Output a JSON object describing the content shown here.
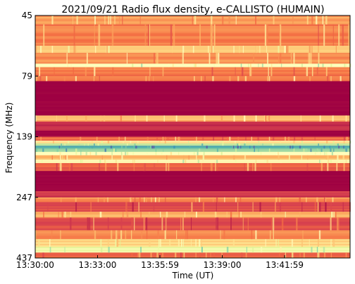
{
  "chart_data": {
    "type": "heatmap",
    "title": "2021/09/21  Radio flux density, e-CALLISTO (HUMAIN)",
    "xlabel": "Time (UT)",
    "ylabel": "Frequency (MHz)",
    "x_ticks": [
      "13:30:00",
      "13:33:00",
      "13:35:59",
      "13:39:00",
      "13:41:59"
    ],
    "y_ticks": [
      "45",
      "79",
      "139",
      "247",
      "437"
    ],
    "y_axis_inverted": true,
    "colormap": "Spectral",
    "colormap_stops": [
      "#9e0142",
      "#d53e4f",
      "#f46d43",
      "#fdae61",
      "#fee08b",
      "#ffffbf",
      "#e6f598",
      "#abdda4",
      "#66c2a5",
      "#3288bd",
      "#5e4fa2"
    ],
    "grid": false,
    "colorbar": false,
    "intensity_bands": [
      {
        "freq_mhz": [
          45,
          50
        ],
        "level": 0.28
      },
      {
        "freq_mhz": [
          50,
          62
        ],
        "level": 0.22
      },
      {
        "freq_mhz": [
          62,
          66
        ],
        "level": 0.34
      },
      {
        "freq_mhz": [
          66,
          72
        ],
        "level": 0.26
      },
      {
        "freq_mhz": [
          72,
          74
        ],
        "level": 0.5
      },
      {
        "freq_mhz": [
          74,
          79
        ],
        "level": 0.22
      },
      {
        "freq_mhz": [
          79,
          84
        ],
        "level": 0.25
      },
      {
        "freq_mhz": [
          84,
          118
        ],
        "level": 0.0
      },
      {
        "freq_mhz": [
          118,
          124
        ],
        "level": 0.32
      },
      {
        "freq_mhz": [
          124,
          133
        ],
        "level": 0.05
      },
      {
        "freq_mhz": [
          133,
          139
        ],
        "level": 0.0
      },
      {
        "freq_mhz": [
          139,
          146
        ],
        "level": 0.2
      },
      {
        "freq_mhz": [
          146,
          151
        ],
        "level": 0.42
      },
      {
        "freq_mhz": [
          151,
          155
        ],
        "level": 0.62
      },
      {
        "freq_mhz": [
          155,
          160
        ],
        "level": 0.85
      },
      {
        "freq_mhz": [
          160,
          166
        ],
        "level": 0.7
      },
      {
        "freq_mhz": [
          166,
          172
        ],
        "level": 0.5
      },
      {
        "freq_mhz": [
          172,
          180
        ],
        "level": 0.32
      },
      {
        "freq_mhz": [
          180,
          186
        ],
        "level": 0.46
      },
      {
        "freq_mhz": [
          186,
          200
        ],
        "level": 0.18
      },
      {
        "freq_mhz": [
          200,
          236
        ],
        "level": 0.0
      },
      {
        "freq_mhz": [
          236,
          247
        ],
        "level": 0.08
      },
      {
        "freq_mhz": [
          247,
          262
        ],
        "level": 0.24
      },
      {
        "freq_mhz": [
          262,
          292
        ],
        "level": 0.12
      },
      {
        "freq_mhz": [
          292,
          310
        ],
        "level": 0.3
      },
      {
        "freq_mhz": [
          310,
          350
        ],
        "level": 0.14
      },
      {
        "freq_mhz": [
          350,
          378
        ],
        "level": 0.26
      },
      {
        "freq_mhz": [
          378,
          402
        ],
        "level": 0.38
      },
      {
        "freq_mhz": [
          402,
          420
        ],
        "level": 0.56
      },
      {
        "freq_mhz": [
          420,
          437
        ],
        "level": 0.2
      }
    ]
  }
}
